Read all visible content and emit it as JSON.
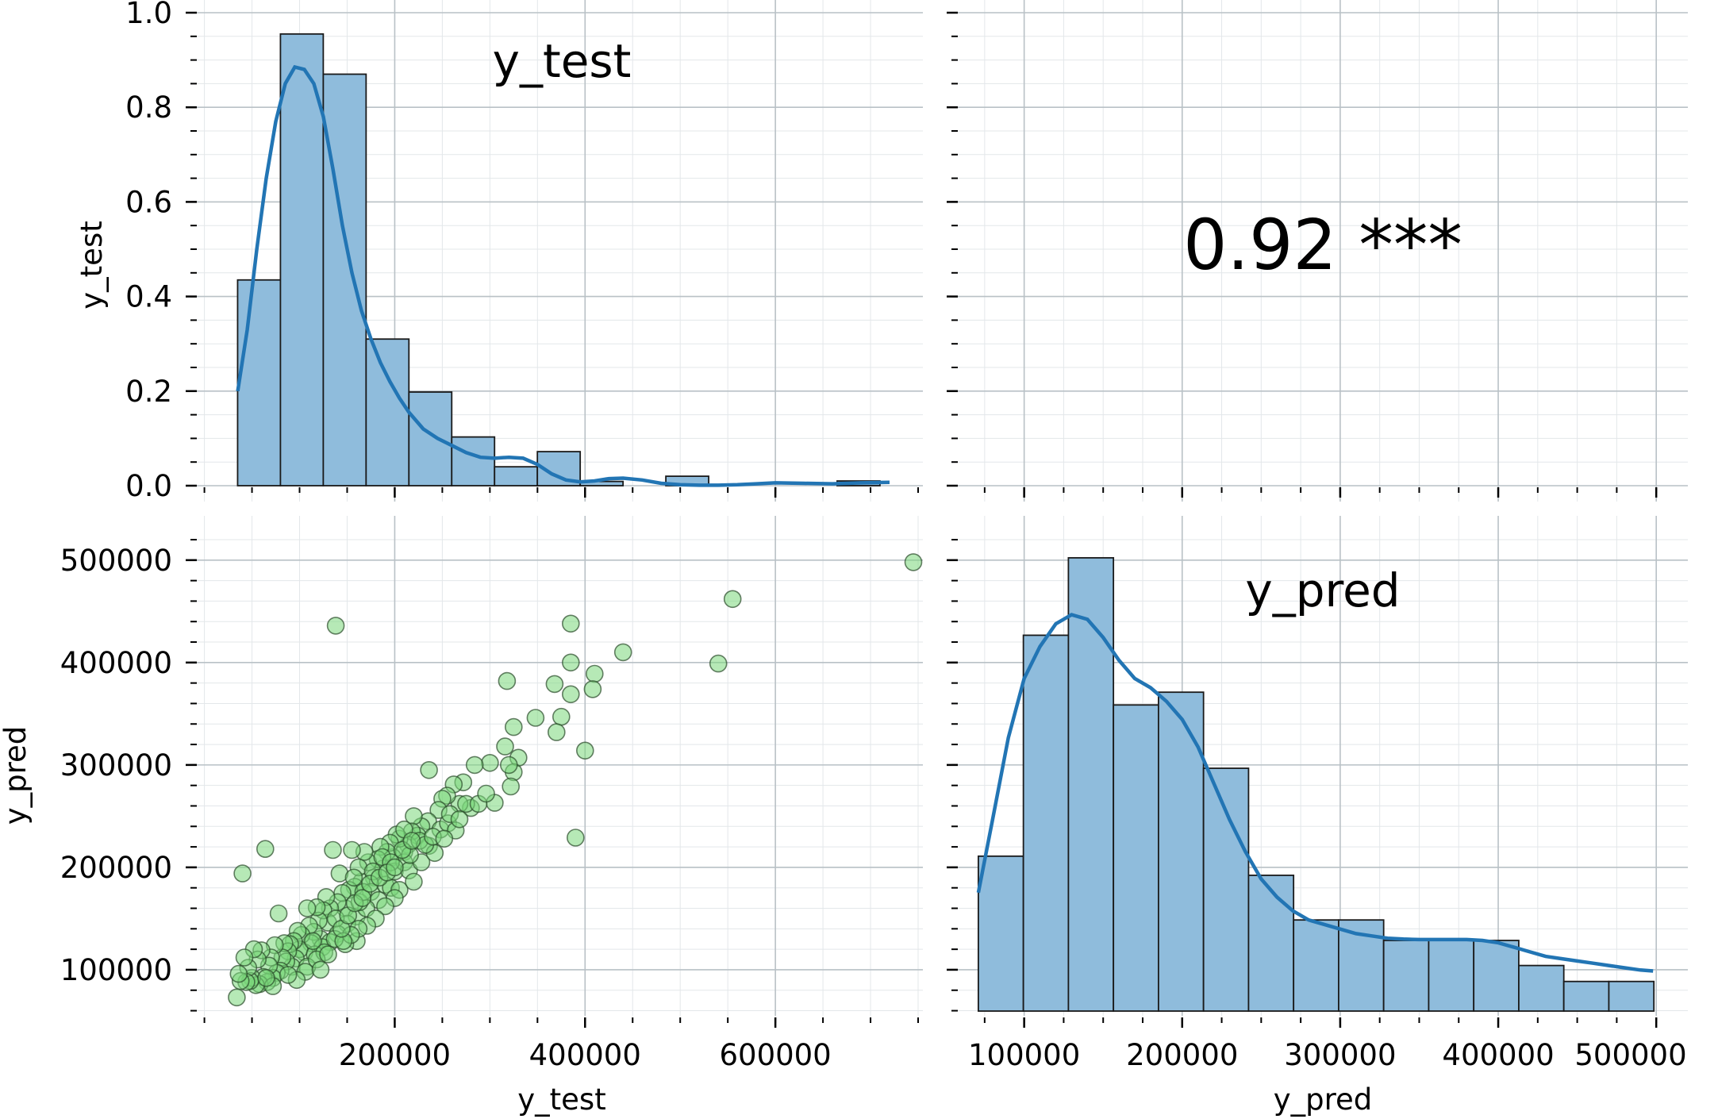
{
  "chart_data": [
    {
      "panel": "top-left",
      "type": "bar",
      "overlay": "kde-line",
      "title": "y_test",
      "xlabel": "",
      "ylabel": "y_test",
      "ylim": [
        0,
        1.0
      ],
      "yticks": [
        "0.0",
        "0.2",
        "0.4",
        "0.6",
        "0.8",
        "1.0"
      ],
      "bins": [
        {
          "x0": 34900,
          "x1": 79900,
          "density": 0.435
        },
        {
          "x0": 79900,
          "x1": 124900,
          "density": 0.955
        },
        {
          "x0": 124900,
          "x1": 169900,
          "density": 0.87
        },
        {
          "x0": 169900,
          "x1": 214900,
          "density": 0.31
        },
        {
          "x0": 214900,
          "x1": 259900,
          "density": 0.198
        },
        {
          "x0": 259900,
          "x1": 304900,
          "density": 0.103
        },
        {
          "x0": 304900,
          "x1": 349900,
          "density": 0.04
        },
        {
          "x0": 349900,
          "x1": 394900,
          "density": 0.072
        },
        {
          "x0": 394900,
          "x1": 439900,
          "density": 0.009
        },
        {
          "x0": 439900,
          "x1": 484900,
          "density": 0.0
        },
        {
          "x0": 484900,
          "x1": 529900,
          "density": 0.02
        },
        {
          "x0": 529900,
          "x1": 574900,
          "density": 0.0
        },
        {
          "x0": 574900,
          "x1": 619900,
          "density": 0.0
        },
        {
          "x0": 619900,
          "x1": 664900,
          "density": 0.0
        },
        {
          "x0": 664900,
          "x1": 709900,
          "density": 0.01
        }
      ],
      "kde": {
        "x": [
          35000,
          45000,
          55000,
          65000,
          75000,
          85000,
          95000,
          105000,
          115000,
          125000,
          135000,
          145000,
          155000,
          165000,
          175000,
          185000,
          195000,
          205000,
          215000,
          230000,
          245000,
          260000,
          275000,
          290000,
          305000,
          320000,
          335000,
          350000,
          365000,
          380000,
          395000,
          410000,
          425000,
          440000,
          460000,
          480000,
          500000,
          520000,
          540000,
          560000,
          580000,
          600000,
          630000,
          660000,
          690000,
          720000
        ],
        "y": [
          0.2,
          0.33,
          0.5,
          0.65,
          0.77,
          0.85,
          0.885,
          0.88,
          0.85,
          0.78,
          0.67,
          0.55,
          0.45,
          0.37,
          0.31,
          0.26,
          0.22,
          0.185,
          0.155,
          0.12,
          0.1,
          0.085,
          0.07,
          0.06,
          0.058,
          0.06,
          0.058,
          0.045,
          0.025,
          0.012,
          0.008,
          0.01,
          0.015,
          0.016,
          0.012,
          0.005,
          0.002,
          0.001,
          0.001,
          0.002,
          0.004,
          0.006,
          0.005,
          0.004,
          0.006,
          0.007
        ]
      }
    },
    {
      "panel": "top-right",
      "type": "table",
      "text": "0.92 ***",
      "yticks_count": 6,
      "xticks_count": 5
    },
    {
      "panel": "bottom-left",
      "type": "scatter",
      "xlabel": "y_test",
      "ylabel": "y_pred",
      "xticks": [
        200000,
        400000,
        600000
      ],
      "xtick_labels": [
        "200000",
        "400000",
        "600000"
      ],
      "yticks": [
        100000,
        200000,
        300000,
        400000,
        500000
      ],
      "ytick_labels": [
        "100000",
        "200000",
        "300000",
        "400000",
        "500000"
      ],
      "xlim": [
        -8000,
        755000
      ],
      "ylim": [
        55000,
        520000
      ],
      "points": [
        [
          745000,
          498000
        ],
        [
          555000,
          462000
        ],
        [
          540000,
          399000
        ],
        [
          440000,
          410000
        ],
        [
          410000,
          389000
        ],
        [
          408000,
          374000
        ],
        [
          400000,
          314000
        ],
        [
          390000,
          229000
        ],
        [
          385000,
          438000
        ],
        [
          385000,
          400000
        ],
        [
          385000,
          369000
        ],
        [
          375000,
          347000
        ],
        [
          370000,
          332000
        ],
        [
          368000,
          379000
        ],
        [
          348000,
          346000
        ],
        [
          325000,
          337000
        ],
        [
          318000,
          382000
        ],
        [
          330000,
          307000
        ],
        [
          325000,
          293000
        ],
        [
          322000,
          279000
        ],
        [
          316000,
          318000
        ],
        [
          320000,
          300000
        ],
        [
          300000,
          302000
        ],
        [
          305000,
          263000
        ],
        [
          284000,
          300000
        ],
        [
          280000,
          258000
        ],
        [
          272000,
          283000
        ],
        [
          268000,
          262000
        ],
        [
          262000,
          281000
        ],
        [
          255000,
          270000
        ],
        [
          250000,
          267000
        ],
        [
          246000,
          256000
        ],
        [
          236000,
          295000
        ],
        [
          235000,
          245000
        ],
        [
          228000,
          240000
        ],
        [
          224000,
          231000
        ],
        [
          220000,
          250000
        ],
        [
          218000,
          235000
        ],
        [
          214000,
          222000
        ],
        [
          210000,
          215000
        ],
        [
          205000,
          228000
        ],
        [
          202000,
          232000
        ],
        [
          198000,
          210000
        ],
        [
          195000,
          224000
        ],
        [
          192000,
          215000
        ],
        [
          188000,
          199000
        ],
        [
          185000,
          220000
        ],
        [
          182000,
          208000
        ],
        [
          178000,
          190000
        ],
        [
          172000,
          205000
        ],
        [
          168000,
          215000
        ],
        [
          165000,
          186000
        ],
        [
          162000,
          200000
        ],
        [
          158000,
          181000
        ],
        [
          155000,
          217000
        ],
        [
          152000,
          178000
        ],
        [
          148000,
          160000
        ],
        [
          145000,
          175000
        ],
        [
          142000,
          194000
        ],
        [
          140000,
          166000
        ],
        [
          138000,
          436000
        ],
        [
          135000,
          217000
        ],
        [
          132000,
          160000
        ],
        [
          130000,
          146000
        ],
        [
          128000,
          171000
        ],
        [
          125000,
          158000
        ],
        [
          122000,
          130000
        ],
        [
          120000,
          148000
        ],
        [
          118000,
          161000
        ],
        [
          115000,
          137000
        ],
        [
          112000,
          126000
        ],
        [
          110000,
          143000
        ],
        [
          108000,
          160000
        ],
        [
          105000,
          117000
        ],
        [
          102000,
          134000
        ],
        [
          100000,
          120000
        ],
        [
          98000,
          138000
        ],
        [
          96000,
          111000
        ],
        [
          94000,
          128000
        ],
        [
          92000,
          103000
        ],
        [
          90000,
          125000
        ],
        [
          88000,
          118000
        ],
        [
          86000,
          108000
        ],
        [
          84000,
          126000
        ],
        [
          82000,
          112000
        ],
        [
          80000,
          99000
        ],
        [
          78000,
          155000
        ],
        [
          76000,
          97000
        ],
        [
          74000,
          124000
        ],
        [
          72000,
          92000
        ],
        [
          70000,
          112000
        ],
        [
          68000,
          104000
        ],
        [
          66000,
          88000
        ],
        [
          64000,
          218000
        ],
        [
          62000,
          93000
        ],
        [
          60000,
          119000
        ],
        [
          58000,
          86000
        ],
        [
          56000,
          110000
        ],
        [
          54000,
          85000
        ],
        [
          52000,
          120000
        ],
        [
          50000,
          92000
        ],
        [
          48000,
          89000
        ],
        [
          46000,
          102000
        ],
        [
          44000,
          88000
        ],
        [
          42000,
          112000
        ],
        [
          40000,
          194000
        ],
        [
          38000,
          89000
        ],
        [
          36000,
          96000
        ],
        [
          34000,
          73000
        ],
        [
          175000,
          176000
        ],
        [
          183000,
          168000
        ],
        [
          190000,
          183000
        ],
        [
          196000,
          180000
        ],
        [
          200000,
          196000
        ],
        [
          205000,
          178000
        ],
        [
          210000,
          205000
        ],
        [
          215000,
          197000
        ],
        [
          220000,
          186000
        ],
        [
          228000,
          205000
        ],
        [
          236000,
          221000
        ],
        [
          242000,
          214000
        ],
        [
          248000,
          237000
        ],
        [
          256000,
          243000
        ],
        [
          264000,
          236000
        ],
        [
          160000,
          152000
        ],
        [
          150000,
          145000
        ],
        [
          140000,
          135000
        ],
        [
          132000,
          127000
        ],
        [
          124000,
          122000
        ],
        [
          116000,
          115000
        ],
        [
          108000,
          103000
        ],
        [
          170000,
          160000
        ],
        [
          163000,
          166000
        ],
        [
          157000,
          190000
        ],
        [
          167000,
          176000
        ],
        [
          177000,
          196000
        ],
        [
          187000,
          210000
        ],
        [
          196000,
          205000
        ],
        [
          160000,
          128000
        ],
        [
          148000,
          125000
        ],
        [
          137000,
          130000
        ],
        [
          126000,
          117000
        ],
        [
          118000,
          110000
        ],
        [
          106000,
          98000
        ],
        [
          97000,
          90000
        ],
        [
          88000,
          95000
        ],
        [
          72000,
          84000
        ],
        [
          65000,
          92000
        ],
        [
          210000,
          237000
        ],
        [
          216000,
          212000
        ],
        [
          226000,
          226000
        ],
        [
          232000,
          222000
        ],
        [
          240000,
          230000
        ],
        [
          252000,
          228000
        ],
        [
          258000,
          252000
        ],
        [
          268000,
          247000
        ],
        [
          275000,
          262000
        ],
        [
          288000,
          262000
        ],
        [
          296000,
          272000
        ],
        [
          200000,
          170000
        ],
        [
          190000,
          162000
        ],
        [
          180000,
          150000
        ],
        [
          171000,
          143000
        ],
        [
          162000,
          140000
        ],
        [
          154000,
          134000
        ],
        [
          146000,
          128000
        ],
        [
          138000,
          150000
        ],
        [
          130000,
          115000
        ],
        [
          122000,
          100000
        ],
        [
          114000,
          128000
        ],
        [
          144000,
          140000
        ],
        [
          151000,
          153000
        ],
        [
          158000,
          165000
        ],
        [
          166000,
          170000
        ],
        [
          174000,
          184000
        ],
        [
          184000,
          190000
        ],
        [
          192000,
          195000
        ],
        [
          200000,
          200000
        ],
        [
          208000,
          217000
        ],
        [
          218000,
          226000
        ]
      ]
    },
    {
      "panel": "bottom-right",
      "type": "bar",
      "overlay": "kde-line",
      "title": "y_pred",
      "xlabel": "y_pred",
      "ylabel": "",
      "xticks": [
        100000,
        200000,
        300000,
        400000,
        500000
      ],
      "xtick_labels": [
        "100000",
        "200000",
        "300000",
        "400000",
        "500000"
      ],
      "xlim": [
        58000,
        520000
      ],
      "bins": [
        {
          "x0": 71000,
          "x1": 99500,
          "density": 0.34
        },
        {
          "x0": 99500,
          "x1": 128000,
          "density": 0.825
        },
        {
          "x0": 128000,
          "x1": 156500,
          "density": 0.995
        },
        {
          "x0": 156500,
          "x1": 185000,
          "density": 0.672
        },
        {
          "x0": 185000,
          "x1": 213500,
          "density": 0.7
        },
        {
          "x0": 213500,
          "x1": 242000,
          "density": 0.533
        },
        {
          "x0": 242000,
          "x1": 270500,
          "density": 0.298
        },
        {
          "x0": 270500,
          "x1": 299000,
          "density": 0.2
        },
        {
          "x0": 299000,
          "x1": 327500,
          "density": 0.2
        },
        {
          "x0": 327500,
          "x1": 356000,
          "density": 0.155
        },
        {
          "x0": 356000,
          "x1": 384500,
          "density": 0.155
        },
        {
          "x0": 384500,
          "x1": 413000,
          "density": 0.155
        },
        {
          "x0": 413000,
          "x1": 441500,
          "density": 0.1
        },
        {
          "x0": 441500,
          "x1": 470000,
          "density": 0.065
        },
        {
          "x0": 470000,
          "x1": 498500,
          "density": 0.065
        }
      ],
      "kde": {
        "x": [
          71000,
          80000,
          90000,
          100000,
          110000,
          120000,
          130000,
          140000,
          150000,
          160000,
          170000,
          180000,
          190000,
          200000,
          210000,
          220000,
          230000,
          240000,
          250000,
          260000,
          270000,
          280000,
          290000,
          300000,
          310000,
          320000,
          330000,
          340000,
          350000,
          360000,
          370000,
          380000,
          390000,
          400000,
          410000,
          420000,
          430000,
          440000,
          450000,
          460000,
          470000,
          480000,
          490000,
          498000
        ],
        "y": [
          0.26,
          0.42,
          0.6,
          0.73,
          0.8,
          0.85,
          0.87,
          0.86,
          0.82,
          0.77,
          0.73,
          0.71,
          0.68,
          0.64,
          0.58,
          0.5,
          0.42,
          0.35,
          0.29,
          0.25,
          0.22,
          0.2,
          0.19,
          0.18,
          0.17,
          0.165,
          0.16,
          0.158,
          0.157,
          0.157,
          0.157,
          0.157,
          0.155,
          0.15,
          0.14,
          0.13,
          0.12,
          0.115,
          0.11,
          0.105,
          0.1,
          0.095,
          0.09,
          0.088
        ]
      }
    }
  ],
  "colors": {
    "bar_fill": "#8fbcdc",
    "bar_edge": "#1a1a1a",
    "kde_line": "#2275b4",
    "scatter_fill": "#7ad77a",
    "scatter_edge": "#2a4a2a",
    "grid_major": "#b9c1c6",
    "grid_minor": "#e3e7ea"
  }
}
